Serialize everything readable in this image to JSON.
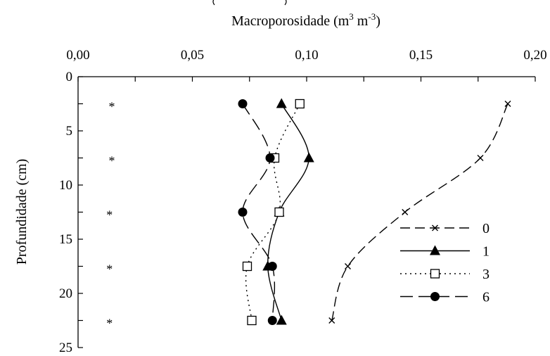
{
  "chart_data": {
    "type": "line",
    "title": "",
    "xlabel": "Macroporosidade (m3 m-3)",
    "xlabel_parts": {
      "main": "Macroporosidade (m",
      "sup1": "3",
      "mid": " m",
      "sup2": "-3",
      "end": ")"
    },
    "ylabel": "Profundidade (cm)",
    "xlim": [
      0,
      0.2
    ],
    "ylim": [
      0,
      25
    ],
    "y_inverted": true,
    "x_axis_position": "top",
    "x_ticks": [
      {
        "value": 0.0,
        "label": "0,00"
      },
      {
        "value": 0.05,
        "label": "0,05"
      },
      {
        "value": 0.1,
        "label": "0,10"
      },
      {
        "value": 0.15,
        "label": "0,15"
      },
      {
        "value": 0.2,
        "label": "0,20"
      }
    ],
    "y_ticks": [
      {
        "value": 0,
        "label": "0"
      },
      {
        "value": 5,
        "label": "5"
      },
      {
        "value": 10,
        "label": "10"
      },
      {
        "value": 15,
        "label": "15"
      },
      {
        "value": 20,
        "label": "20"
      },
      {
        "value": 25,
        "label": "25"
      }
    ],
    "grid": false,
    "legend_position": "bottom-right",
    "series": [
      {
        "name": "0",
        "marker": "x",
        "dash": "dash",
        "points": [
          [
            0.188,
            2.5
          ],
          [
            0.176,
            7.5
          ],
          [
            0.143,
            12.5
          ],
          [
            0.118,
            17.5
          ],
          [
            0.111,
            22.5
          ]
        ]
      },
      {
        "name": "1",
        "marker": "triangle",
        "dash": "solid",
        "points": [
          [
            0.089,
            2.5
          ],
          [
            0.101,
            7.5
          ],
          [
            0.088,
            12.5
          ],
          [
            0.083,
            17.5
          ],
          [
            0.089,
            22.5
          ]
        ]
      },
      {
        "name": "3",
        "marker": "square",
        "dash": "dot",
        "points": [
          [
            0.097,
            2.5
          ],
          [
            0.086,
            7.5
          ],
          [
            0.088,
            12.5
          ],
          [
            0.074,
            17.5
          ],
          [
            0.076,
            22.5
          ]
        ]
      },
      {
        "name": "6",
        "marker": "circle",
        "dash": "longdash",
        "points": [
          [
            0.072,
            2.5
          ],
          [
            0.084,
            7.5
          ],
          [
            0.072,
            12.5
          ],
          [
            0.085,
            17.5
          ],
          [
            0.085,
            22.5
          ]
        ]
      }
    ],
    "annotations": [
      {
        "text": "*",
        "x": 0.012,
        "y": 2.5
      },
      {
        "text": "*",
        "x": 0.012,
        "y": 7.5
      },
      {
        "text": "*",
        "x": 0.011,
        "y": 12.5
      },
      {
        "text": "*",
        "x": 0.011,
        "y": 17.5
      },
      {
        "text": "*",
        "x": 0.011,
        "y": 22.5
      }
    ]
  }
}
